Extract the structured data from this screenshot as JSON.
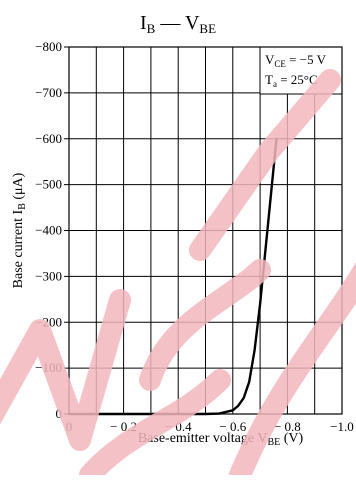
{
  "chart_data": {
    "type": "line",
    "title": "I",
    "title_sub": "B",
    "title_dash": " — V",
    "title_sub2": "BE",
    "xlabel": "Base-emitter voltage  V",
    "xlabel_sub": "BE",
    "xlabel_unit": "  (V)",
    "ylabel": "Base current  I",
    "ylabel_sub": "B",
    "ylabel_unit": "  (μA)",
    "xlim": [
      0,
      -1.0
    ],
    "ylim": [
      0,
      -800
    ],
    "x_ticks": [
      {
        "value": 0,
        "label": "0"
      },
      {
        "value": -0.2,
        "label": "− 0.2"
      },
      {
        "value": -0.4,
        "label": "− 0.4"
      },
      {
        "value": -0.6,
        "label": "− 0.6"
      },
      {
        "value": -0.8,
        "label": "− 0.8"
      },
      {
        "value": -1.0,
        "label": "−1.0"
      }
    ],
    "y_ticks": [
      {
        "value": 0,
        "label": "0"
      },
      {
        "value": -100,
        "label": "−100"
      },
      {
        "value": -200,
        "label": "−200"
      },
      {
        "value": -300,
        "label": "−300"
      },
      {
        "value": -400,
        "label": "−400"
      },
      {
        "value": -500,
        "label": "−500"
      },
      {
        "value": -600,
        "label": "−600"
      },
      {
        "value": -700,
        "label": "−700"
      },
      {
        "value": -800,
        "label": "−800"
      }
    ],
    "grid": true,
    "series": [
      {
        "x": [
          0,
          -0.3,
          -0.5,
          -0.55,
          -0.6,
          -0.62,
          -0.64,
          -0.66,
          -0.68,
          -0.7,
          -0.72,
          -0.74,
          -0.76
        ],
        "y": [
          0,
          0,
          0,
          -1,
          -8,
          -18,
          -35,
          -70,
          -140,
          -240,
          -360,
          -480,
          -600
        ]
      }
    ],
    "annotation": {
      "line1_main": "V",
      "line1_sub": "CE",
      "line1_rest": " = −5 V",
      "line2_main": "T",
      "line2_sub": "a",
      "line2_rest": " = 25°C"
    },
    "line_color": "#000000",
    "grid_color": "#000000",
    "watermark_color": "#f3b7bd"
  }
}
